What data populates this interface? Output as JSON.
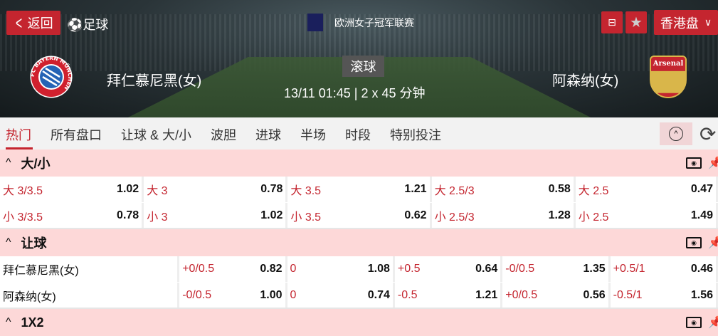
{
  "header": {
    "back_label": "返回",
    "sport": "足球",
    "league": "欧洲女子冠军联赛",
    "odds_type": "香港盘",
    "status": "滚球",
    "datetime": "13/11 01:45",
    "duration": "2 x 45 分钟",
    "home_team": "拜仁慕尼黑(女)",
    "away_team": "阿森纳(女)",
    "home_logo_text": "FC BAYERN MÜNCHEN",
    "away_logo_text": "Arsenal"
  },
  "tabs": [
    {
      "label": "热门",
      "active": true
    },
    {
      "label": "所有盘口"
    },
    {
      "label": "让球 & 大/小"
    },
    {
      "label": "波胆"
    },
    {
      "label": "进球"
    },
    {
      "label": "半场"
    },
    {
      "label": "时段"
    },
    {
      "label": "特别投注"
    }
  ],
  "colors": {
    "accent": "#c4252f",
    "section_bg": "#fdd8d8"
  },
  "over_under": {
    "title": "大/小",
    "rows": [
      [
        {
          "l": "大 3/3.5",
          "v": "1.02"
        },
        {
          "l": "大 3",
          "v": "0.78"
        },
        {
          "l": "大 3.5",
          "v": "1.21"
        },
        {
          "l": "大 2.5/3",
          "v": "0.58"
        },
        {
          "l": "大 2.5",
          "v": "0.47"
        }
      ],
      [
        {
          "l": "小 3/3.5",
          "v": "0.78"
        },
        {
          "l": "小 3",
          "v": "1.02"
        },
        {
          "l": "小 3.5",
          "v": "0.62"
        },
        {
          "l": "小 2.5/3",
          "v": "1.28"
        },
        {
          "l": "小 2.5",
          "v": "1.49"
        }
      ]
    ]
  },
  "handicap": {
    "title": "让球",
    "rows": [
      {
        "team": "拜仁慕尼黑(女)",
        "cells": [
          {
            "l": "+0/0.5",
            "v": "0.82"
          },
          {
            "l": "0",
            "v": "1.08"
          },
          {
            "l": "+0.5",
            "v": "0.64"
          },
          {
            "l": "-0/0.5",
            "v": "1.35"
          },
          {
            "l": "+0.5/1",
            "v": "0.46"
          }
        ]
      },
      {
        "team": "阿森纳(女)",
        "cells": [
          {
            "l": "-0/0.5",
            "v": "1.00"
          },
          {
            "l": "0",
            "v": "0.74"
          },
          {
            "l": "-0.5",
            "v": "1.21"
          },
          {
            "l": "+0/0.5",
            "v": "0.56"
          },
          {
            "l": "-0.5/1",
            "v": "1.56"
          }
        ]
      }
    ]
  },
  "next_section": {
    "title": "1X2"
  }
}
